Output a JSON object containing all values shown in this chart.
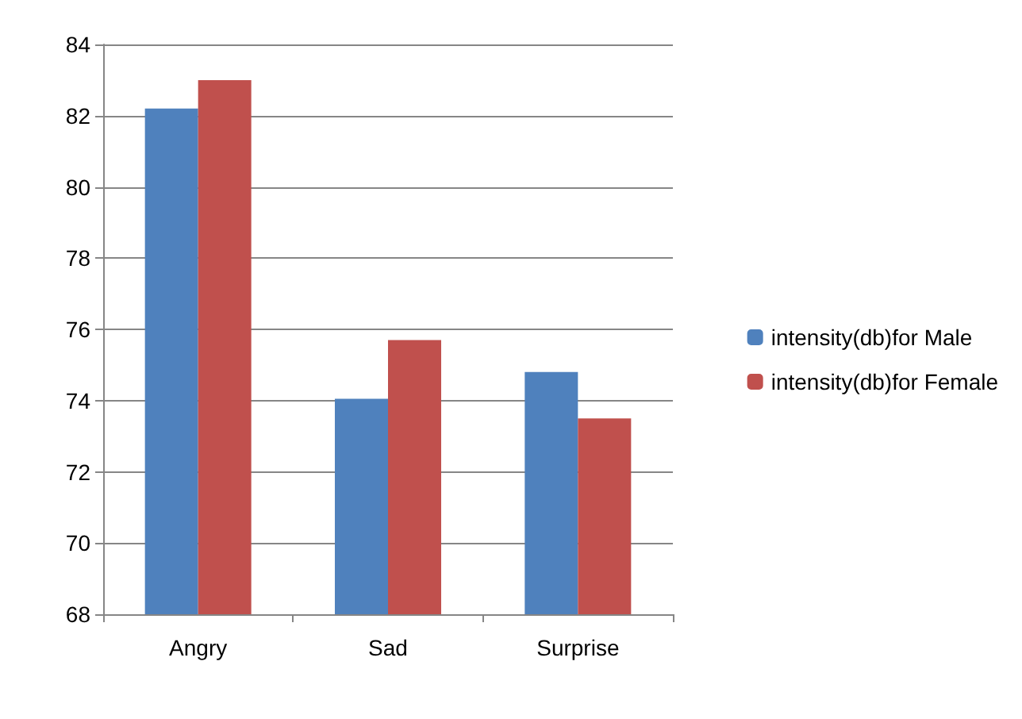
{
  "chart_data": {
    "type": "bar",
    "categories": [
      "Angry",
      "Sad",
      "Surprise"
    ],
    "series": [
      {
        "name": "intensity(db)for Male",
        "color": "#4f81bd",
        "values": [
          82.2,
          74.05,
          74.8
        ]
      },
      {
        "name": "intensity(db)for Female",
        "color": "#c0504d",
        "values": [
          83.0,
          75.7,
          73.5
        ]
      }
    ],
    "ylim": [
      68,
      84
    ],
    "yticks": [
      68,
      70,
      72,
      74,
      76,
      78,
      80,
      82,
      84
    ],
    "grid": "y",
    "legend": "right"
  }
}
